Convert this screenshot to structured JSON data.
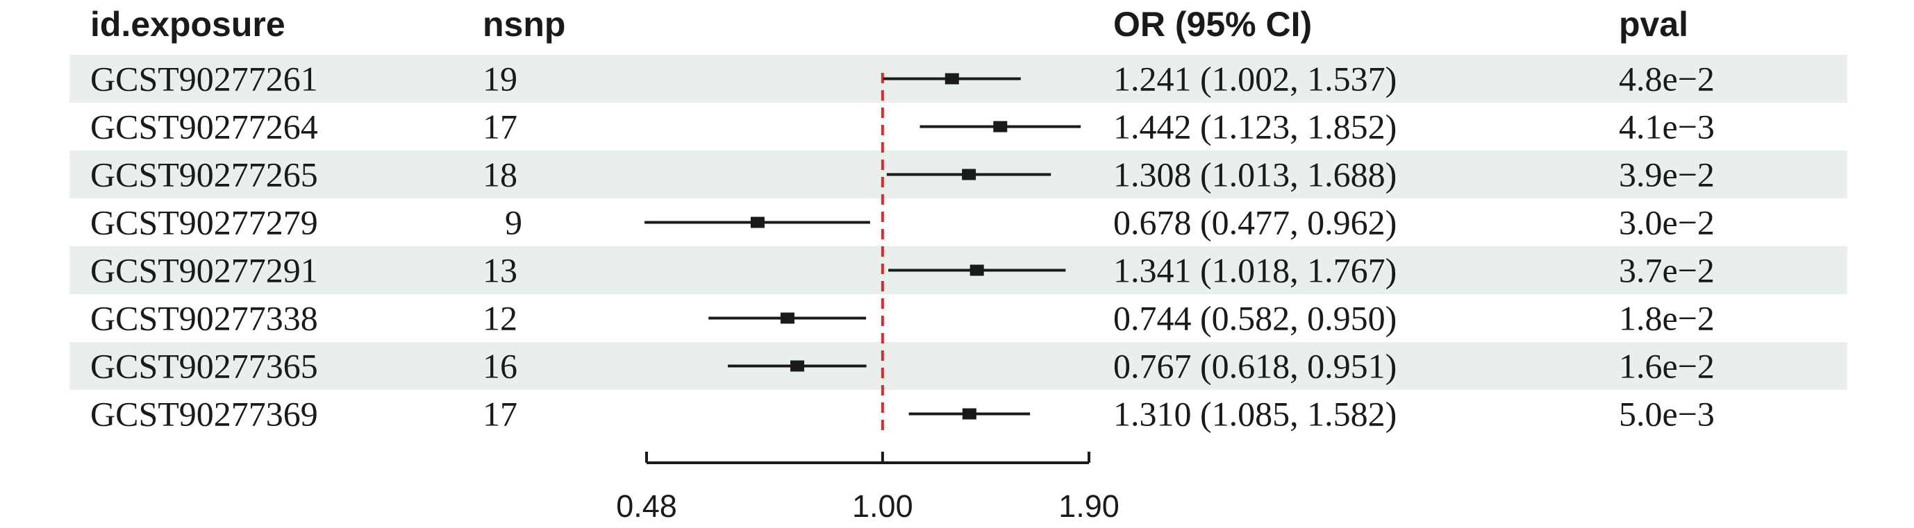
{
  "chart_data": {
    "type": "forest",
    "columns": {
      "id": "id.exposure",
      "nsnp": "nsnp",
      "or": "OR (95% CI)",
      "pval": "pval"
    },
    "rows": [
      {
        "id": "GCST90277261",
        "nsnp": "19",
        "or": 1.241,
        "lo": 1.002,
        "hi": 1.537,
        "or_text": "1.241 (1.002, 1.537)",
        "pval": "4.8e−2"
      },
      {
        "id": "GCST90277264",
        "nsnp": "17",
        "or": 1.442,
        "lo": 1.123,
        "hi": 1.852,
        "or_text": "1.442 (1.123, 1.852)",
        "pval": "4.1e−3"
      },
      {
        "id": "GCST90277265",
        "nsnp": "18",
        "or": 1.308,
        "lo": 1.013,
        "hi": 1.688,
        "or_text": "1.308 (1.013, 1.688)",
        "pval": "3.9e−2"
      },
      {
        "id": "GCST90277279",
        "nsnp": "9",
        "or": 0.678,
        "lo": 0.477,
        "hi": 0.962,
        "or_text": "0.678 (0.477, 0.962)",
        "pval": "3.0e−2"
      },
      {
        "id": "GCST90277291",
        "nsnp": "13",
        "or": 1.341,
        "lo": 1.018,
        "hi": 1.767,
        "or_text": "1.341 (1.018, 1.767)",
        "pval": "3.7e−2"
      },
      {
        "id": "GCST90277338",
        "nsnp": "12",
        "or": 0.744,
        "lo": 0.582,
        "hi": 0.95,
        "or_text": "0.744 (0.582, 0.950)",
        "pval": "1.8e−2"
      },
      {
        "id": "GCST90277365",
        "nsnp": "16",
        "or": 0.767,
        "lo": 0.618,
        "hi": 0.951,
        "or_text": "0.767 (0.618, 0.951)",
        "pval": "1.6e−2"
      },
      {
        "id": "GCST90277369",
        "nsnp": "17",
        "or": 1.31,
        "lo": 1.085,
        "hi": 1.582,
        "or_text": "1.310 (1.085, 1.582)",
        "pval": "5.0e−3"
      }
    ],
    "x_scale": "log",
    "xlim": [
      0.48,
      1.9
    ],
    "x_ticks": [
      0.48,
      1.0,
      1.9
    ],
    "x_tick_labels": [
      "0.48",
      "1.00",
      "1.90"
    ],
    "reference_line": 1.0,
    "colors": {
      "stripe": "#e9efeb",
      "reference_line": "#dc2a2a",
      "marks": "#1a1a1a"
    }
  }
}
